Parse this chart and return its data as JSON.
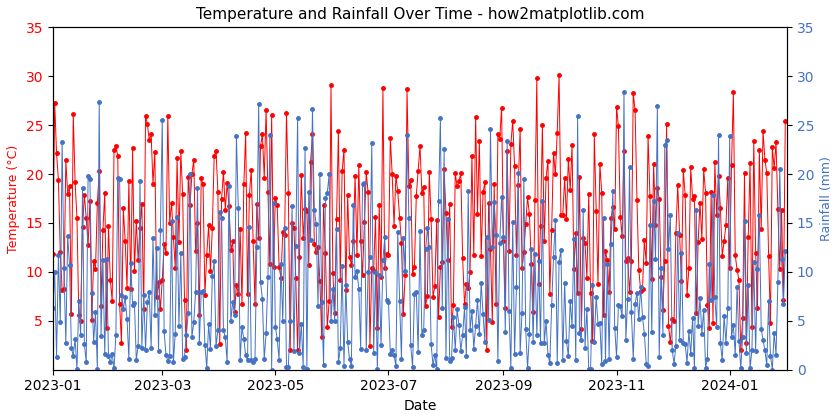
{
  "title": "Temperature and Rainfall Over Time - how2matplotlib.com",
  "xlabel": "Date",
  "ylabel_left": "Temperature (°C)",
  "ylabel_right": "Rainfall (mm)",
  "temp_color": "red",
  "rain_color": "#4472c4",
  "ylim_temp": [
    0,
    35
  ],
  "ylim_rain": [
    0,
    35
  ],
  "yticks_temp": [
    5,
    10,
    15,
    20,
    25,
    30,
    35
  ],
  "yticks_rain": [
    0,
    5,
    10,
    15,
    20,
    25,
    30,
    35
  ],
  "start_date": "2023-01-01",
  "end_date": "2024-01-31",
  "seed": 42,
  "figsize": [
    8.4,
    4.2
  ],
  "dpi": 100
}
